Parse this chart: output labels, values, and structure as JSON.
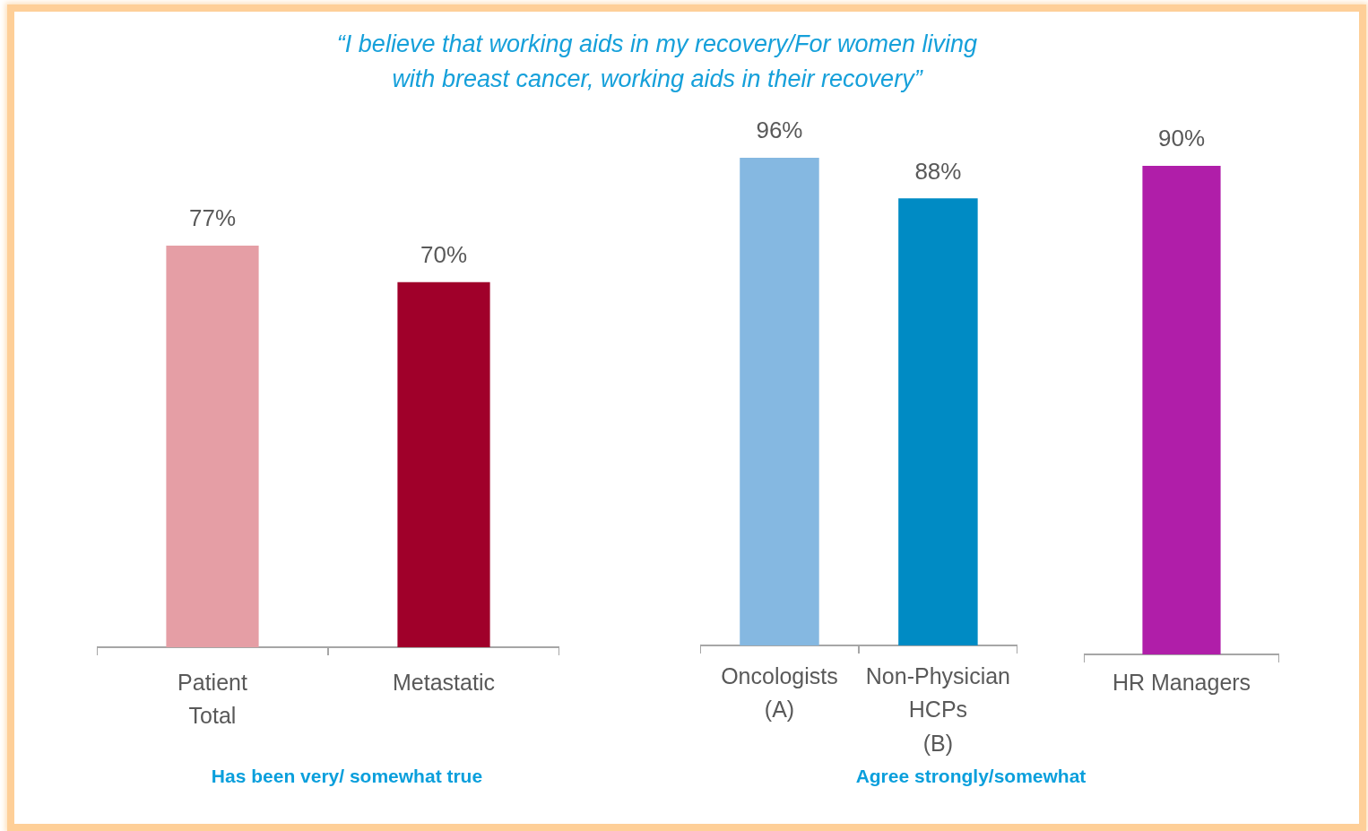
{
  "chart_data": [
    {
      "type": "bar",
      "title": "“I believe that working aids in my recovery/For women living with breast cancer, working aids in their recovery”",
      "categories": [
        "Patient\nTotal",
        "Metastatic"
      ],
      "values": [
        77,
        70
      ],
      "colors": [
        "#e59ea5",
        "#a0002a"
      ],
      "value_labels": [
        "77%",
        "70%"
      ],
      "annotations": [
        "Has been very/ somewhat true"
      ]
    },
    {
      "type": "bar",
      "categories": [
        "Oncologists\n(A)",
        "Non-Physician\nHCPs\n(B)"
      ],
      "values": [
        96,
        88
      ],
      "colors": [
        "#85b8e1",
        "#008bc4"
      ],
      "value_labels": [
        "96%",
        "88%"
      ],
      "annotations": [
        "Agree strongly/somewhat"
      ]
    },
    {
      "type": "bar",
      "categories": [
        "HR Managers"
      ],
      "values": [
        90
      ],
      "colors": [
        "#b01ea9"
      ],
      "value_labels": [
        "90%"
      ]
    }
  ]
}
